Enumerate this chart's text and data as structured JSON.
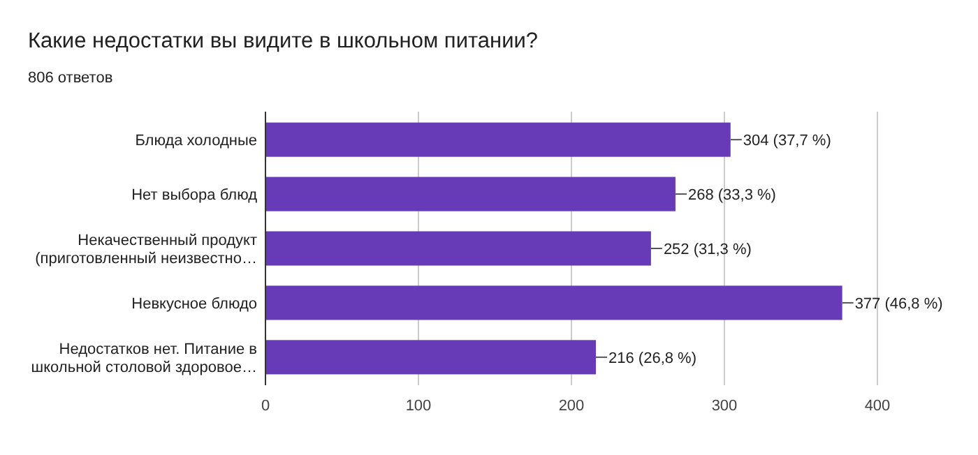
{
  "chart_data": {
    "type": "bar",
    "orientation": "horizontal",
    "title": "Какие недостатки вы видите в школьном питании?",
    "subtitle": "806 ответов",
    "categories": [
      "Блюда холодные",
      "Нет выбора блюд",
      "Некачественный продукт (приготовленный неизвестно…",
      "Невкусное блюдо",
      "Недостатков нет. Питание в школьной столовой здоровое…"
    ],
    "values": [
      304,
      268,
      252,
      377,
      216
    ],
    "value_labels": [
      "304 (37,7 %)",
      "268 (33,3 %)",
      "252 (31,3 %)",
      "377 (46,8 %)",
      "216 (26,8 %)"
    ],
    "color": "#673ab7",
    "xlim": [
      0,
      400
    ],
    "xticks": [
      0,
      100,
      200,
      300,
      400
    ],
    "grid": "x"
  }
}
